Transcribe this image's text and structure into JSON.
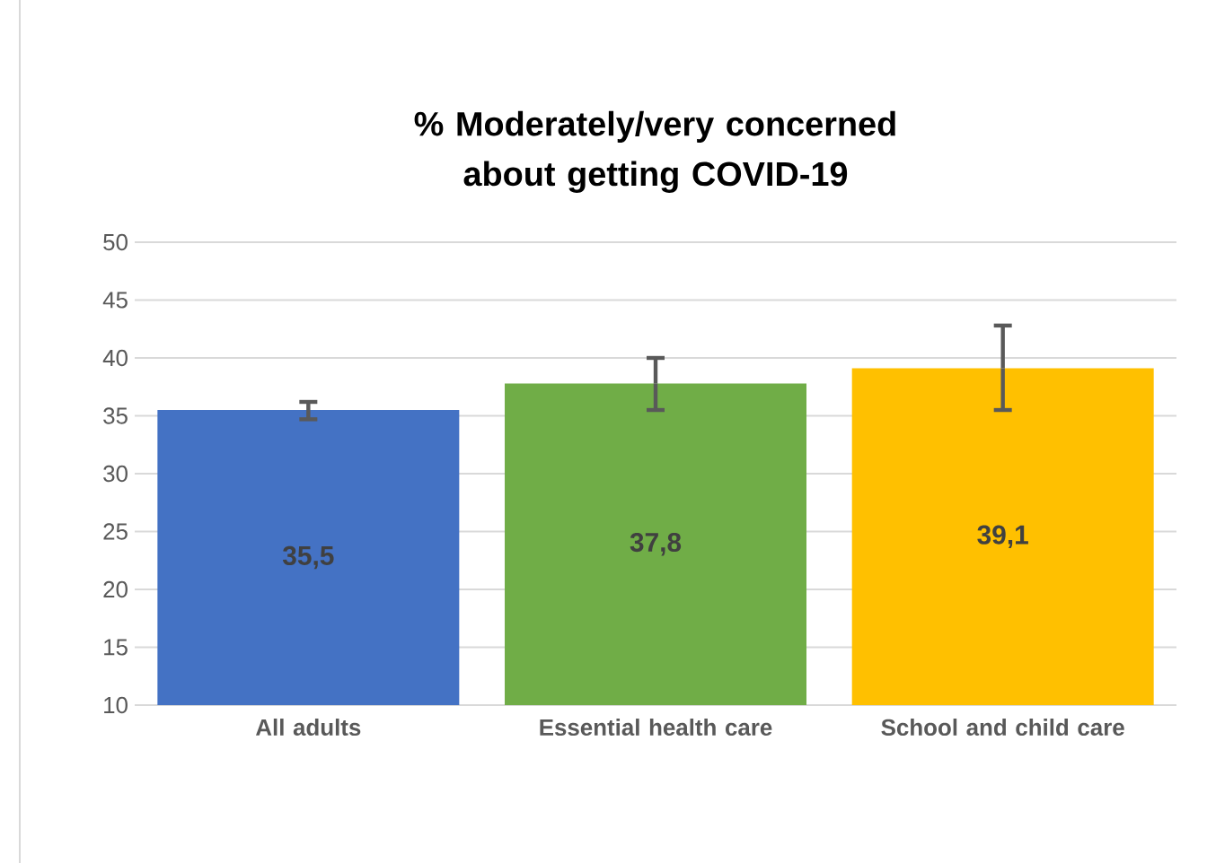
{
  "chart_data": {
    "type": "bar",
    "title": "% Moderately/very concerned about getting COVID-19",
    "categories": [
      "All adults",
      "Essential health care",
      "School and child care"
    ],
    "values": [
      35.5,
      37.8,
      39.1
    ],
    "colors": [
      "#4472c4",
      "#70ad47",
      "#ffc000"
    ],
    "value_labels": [
      "35,5",
      "37,8",
      "39,1"
    ],
    "errors": [
      [
        34.7,
        36.2
      ],
      [
        35.5,
        40.0
      ],
      [
        35.5,
        42.8
      ]
    ],
    "ylim": [
      10,
      50
    ],
    "yticks": [
      10,
      15,
      20,
      25,
      30,
      35,
      40,
      45,
      50
    ],
    "grid": "y"
  }
}
